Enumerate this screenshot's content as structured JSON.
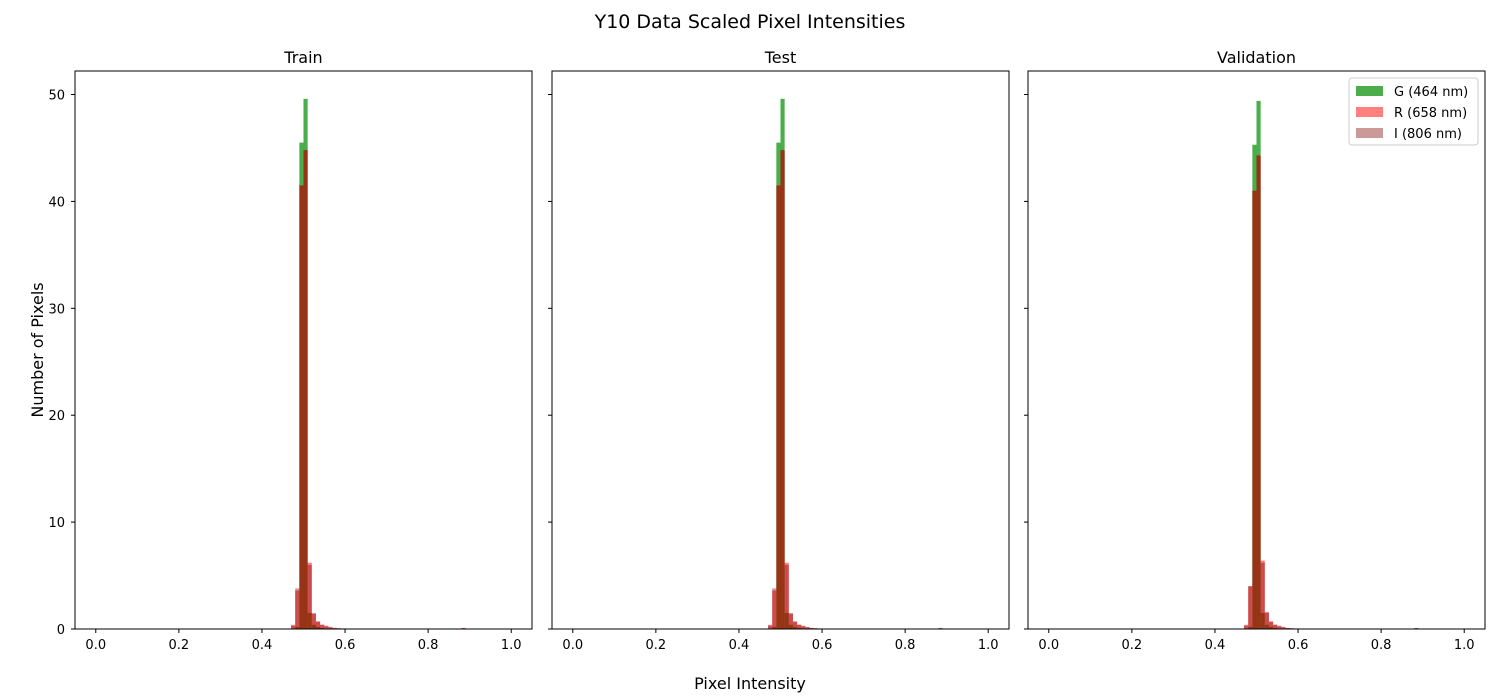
{
  "figure": {
    "title": "Y10 Data Scaled Pixel Intensities",
    "xlabel": "Pixel Intensity",
    "ylabel": "Number of Pixels"
  },
  "chart_data": {
    "type": "histogram",
    "title": "Y10 Data Scaled Pixel Intensities",
    "xlabel": "Pixel Intensity",
    "ylabel": "Number of Pixels",
    "sharey": true,
    "bins": 100,
    "bin_width": 0.01,
    "xlim": [
      -0.05,
      1.05
    ],
    "ylim": [
      0,
      52.2
    ],
    "xticks": [
      "0.0",
      "0.2",
      "0.4",
      "0.6",
      "0.8",
      "1.0"
    ],
    "yticks": [
      "0",
      "10",
      "20",
      "30",
      "40",
      "50"
    ],
    "ytick_values": [
      0,
      10,
      20,
      30,
      40,
      50
    ],
    "xtick_values": [
      0.0,
      0.2,
      0.4,
      0.6,
      0.8,
      1.0
    ],
    "legend": {
      "placement": "top-right",
      "panel": "Validation",
      "entries": [
        {
          "label": "G (464 nm)",
          "color": "#2ca02c",
          "alpha": 0.85
        },
        {
          "label": "R (658 nm)",
          "color": "#ff0000",
          "alpha": 0.5
        },
        {
          "label": "I (806 nm)",
          "color": "#800000",
          "alpha": 0.4
        }
      ]
    },
    "panels": [
      {
        "title": "Train",
        "series": [
          {
            "name": "G (464 nm)",
            "bins": [
              [
                0.48,
                0.2
              ],
              [
                0.49,
                45.5
              ],
              [
                0.5,
                49.6
              ],
              [
                0.51,
                1.5
              ],
              [
                0.52,
                0.4
              ],
              [
                0.53,
                0.2
              ],
              [
                0.54,
                0.1
              ]
            ]
          },
          {
            "name": "R (658 nm)",
            "bins": [
              [
                0.47,
                0.3
              ],
              [
                0.48,
                3.6
              ],
              [
                0.49,
                41.5
              ],
              [
                0.5,
                44.8
              ],
              [
                0.51,
                6.2
              ],
              [
                0.52,
                1.4
              ],
              [
                0.53,
                0.7
              ],
              [
                0.54,
                0.4
              ],
              [
                0.55,
                0.25
              ],
              [
                0.56,
                0.15
              ],
              [
                0.57,
                0.1
              ],
              [
                0.58,
                0.06
              ],
              [
                0.59,
                0.05
              ],
              [
                0.88,
                0.08
              ]
            ]
          },
          {
            "name": "I (806 nm)",
            "bins": [
              [
                0.47,
                0.4
              ],
              [
                0.48,
                3.8
              ],
              [
                0.49,
                41.5
              ],
              [
                0.5,
                44.8
              ],
              [
                0.51,
                6.0
              ],
              [
                0.52,
                1.5
              ],
              [
                0.53,
                0.7
              ],
              [
                0.54,
                0.4
              ],
              [
                0.55,
                0.3
              ],
              [
                0.56,
                0.2
              ],
              [
                0.57,
                0.1
              ],
              [
                0.58,
                0.08
              ],
              [
                0.59,
                0.05
              ],
              [
                0.88,
                0.1
              ]
            ]
          }
        ]
      },
      {
        "title": "Test",
        "series": [
          {
            "name": "G (464 nm)",
            "bins": [
              [
                0.48,
                0.2
              ],
              [
                0.49,
                45.5
              ],
              [
                0.5,
                49.6
              ],
              [
                0.51,
                1.5
              ],
              [
                0.52,
                0.4
              ],
              [
                0.53,
                0.2
              ],
              [
                0.54,
                0.1
              ]
            ]
          },
          {
            "name": "R (658 nm)",
            "bins": [
              [
                0.47,
                0.3
              ],
              [
                0.48,
                3.6
              ],
              [
                0.49,
                41.5
              ],
              [
                0.5,
                44.8
              ],
              [
                0.51,
                6.2
              ],
              [
                0.52,
                1.4
              ],
              [
                0.53,
                0.7
              ],
              [
                0.54,
                0.4
              ],
              [
                0.55,
                0.25
              ],
              [
                0.56,
                0.15
              ],
              [
                0.57,
                0.1
              ],
              [
                0.58,
                0.06
              ],
              [
                0.59,
                0.05
              ],
              [
                0.88,
                0.08
              ]
            ]
          },
          {
            "name": "I (806 nm)",
            "bins": [
              [
                0.47,
                0.4
              ],
              [
                0.48,
                3.8
              ],
              [
                0.49,
                41.5
              ],
              [
                0.5,
                44.8
              ],
              [
                0.51,
                6.0
              ],
              [
                0.52,
                1.5
              ],
              [
                0.53,
                0.7
              ],
              [
                0.54,
                0.4
              ],
              [
                0.55,
                0.3
              ],
              [
                0.56,
                0.2
              ],
              [
                0.57,
                0.1
              ],
              [
                0.58,
                0.08
              ],
              [
                0.59,
                0.05
              ],
              [
                0.88,
                0.1
              ]
            ]
          }
        ]
      },
      {
        "title": "Validation",
        "series": [
          {
            "name": "G (464 nm)",
            "bins": [
              [
                0.48,
                0.2
              ],
              [
                0.49,
                45.3
              ],
              [
                0.5,
                49.4
              ],
              [
                0.51,
                1.5
              ],
              [
                0.52,
                0.4
              ],
              [
                0.53,
                0.2
              ],
              [
                0.54,
                0.1
              ]
            ]
          },
          {
            "name": "R (658 nm)",
            "bins": [
              [
                0.47,
                0.3
              ],
              [
                0.48,
                4.0
              ],
              [
                0.49,
                41.0
              ],
              [
                0.5,
                44.3
              ],
              [
                0.51,
                6.4
              ],
              [
                0.52,
                1.5
              ],
              [
                0.53,
                0.7
              ],
              [
                0.54,
                0.4
              ],
              [
                0.55,
                0.25
              ],
              [
                0.56,
                0.15
              ],
              [
                0.57,
                0.1
              ],
              [
                0.58,
                0.06
              ],
              [
                0.59,
                0.05
              ],
              [
                0.88,
                0.08
              ]
            ]
          },
          {
            "name": "I (806 nm)",
            "bins": [
              [
                0.47,
                0.4
              ],
              [
                0.48,
                4.0
              ],
              [
                0.49,
                41.0
              ],
              [
                0.5,
                44.3
              ],
              [
                0.51,
                6.2
              ],
              [
                0.52,
                1.6
              ],
              [
                0.53,
                0.7
              ],
              [
                0.54,
                0.4
              ],
              [
                0.55,
                0.3
              ],
              [
                0.56,
                0.2
              ],
              [
                0.57,
                0.1
              ],
              [
                0.58,
                0.08
              ],
              [
                0.59,
                0.05
              ],
              [
                0.88,
                0.1
              ]
            ]
          }
        ]
      }
    ]
  }
}
